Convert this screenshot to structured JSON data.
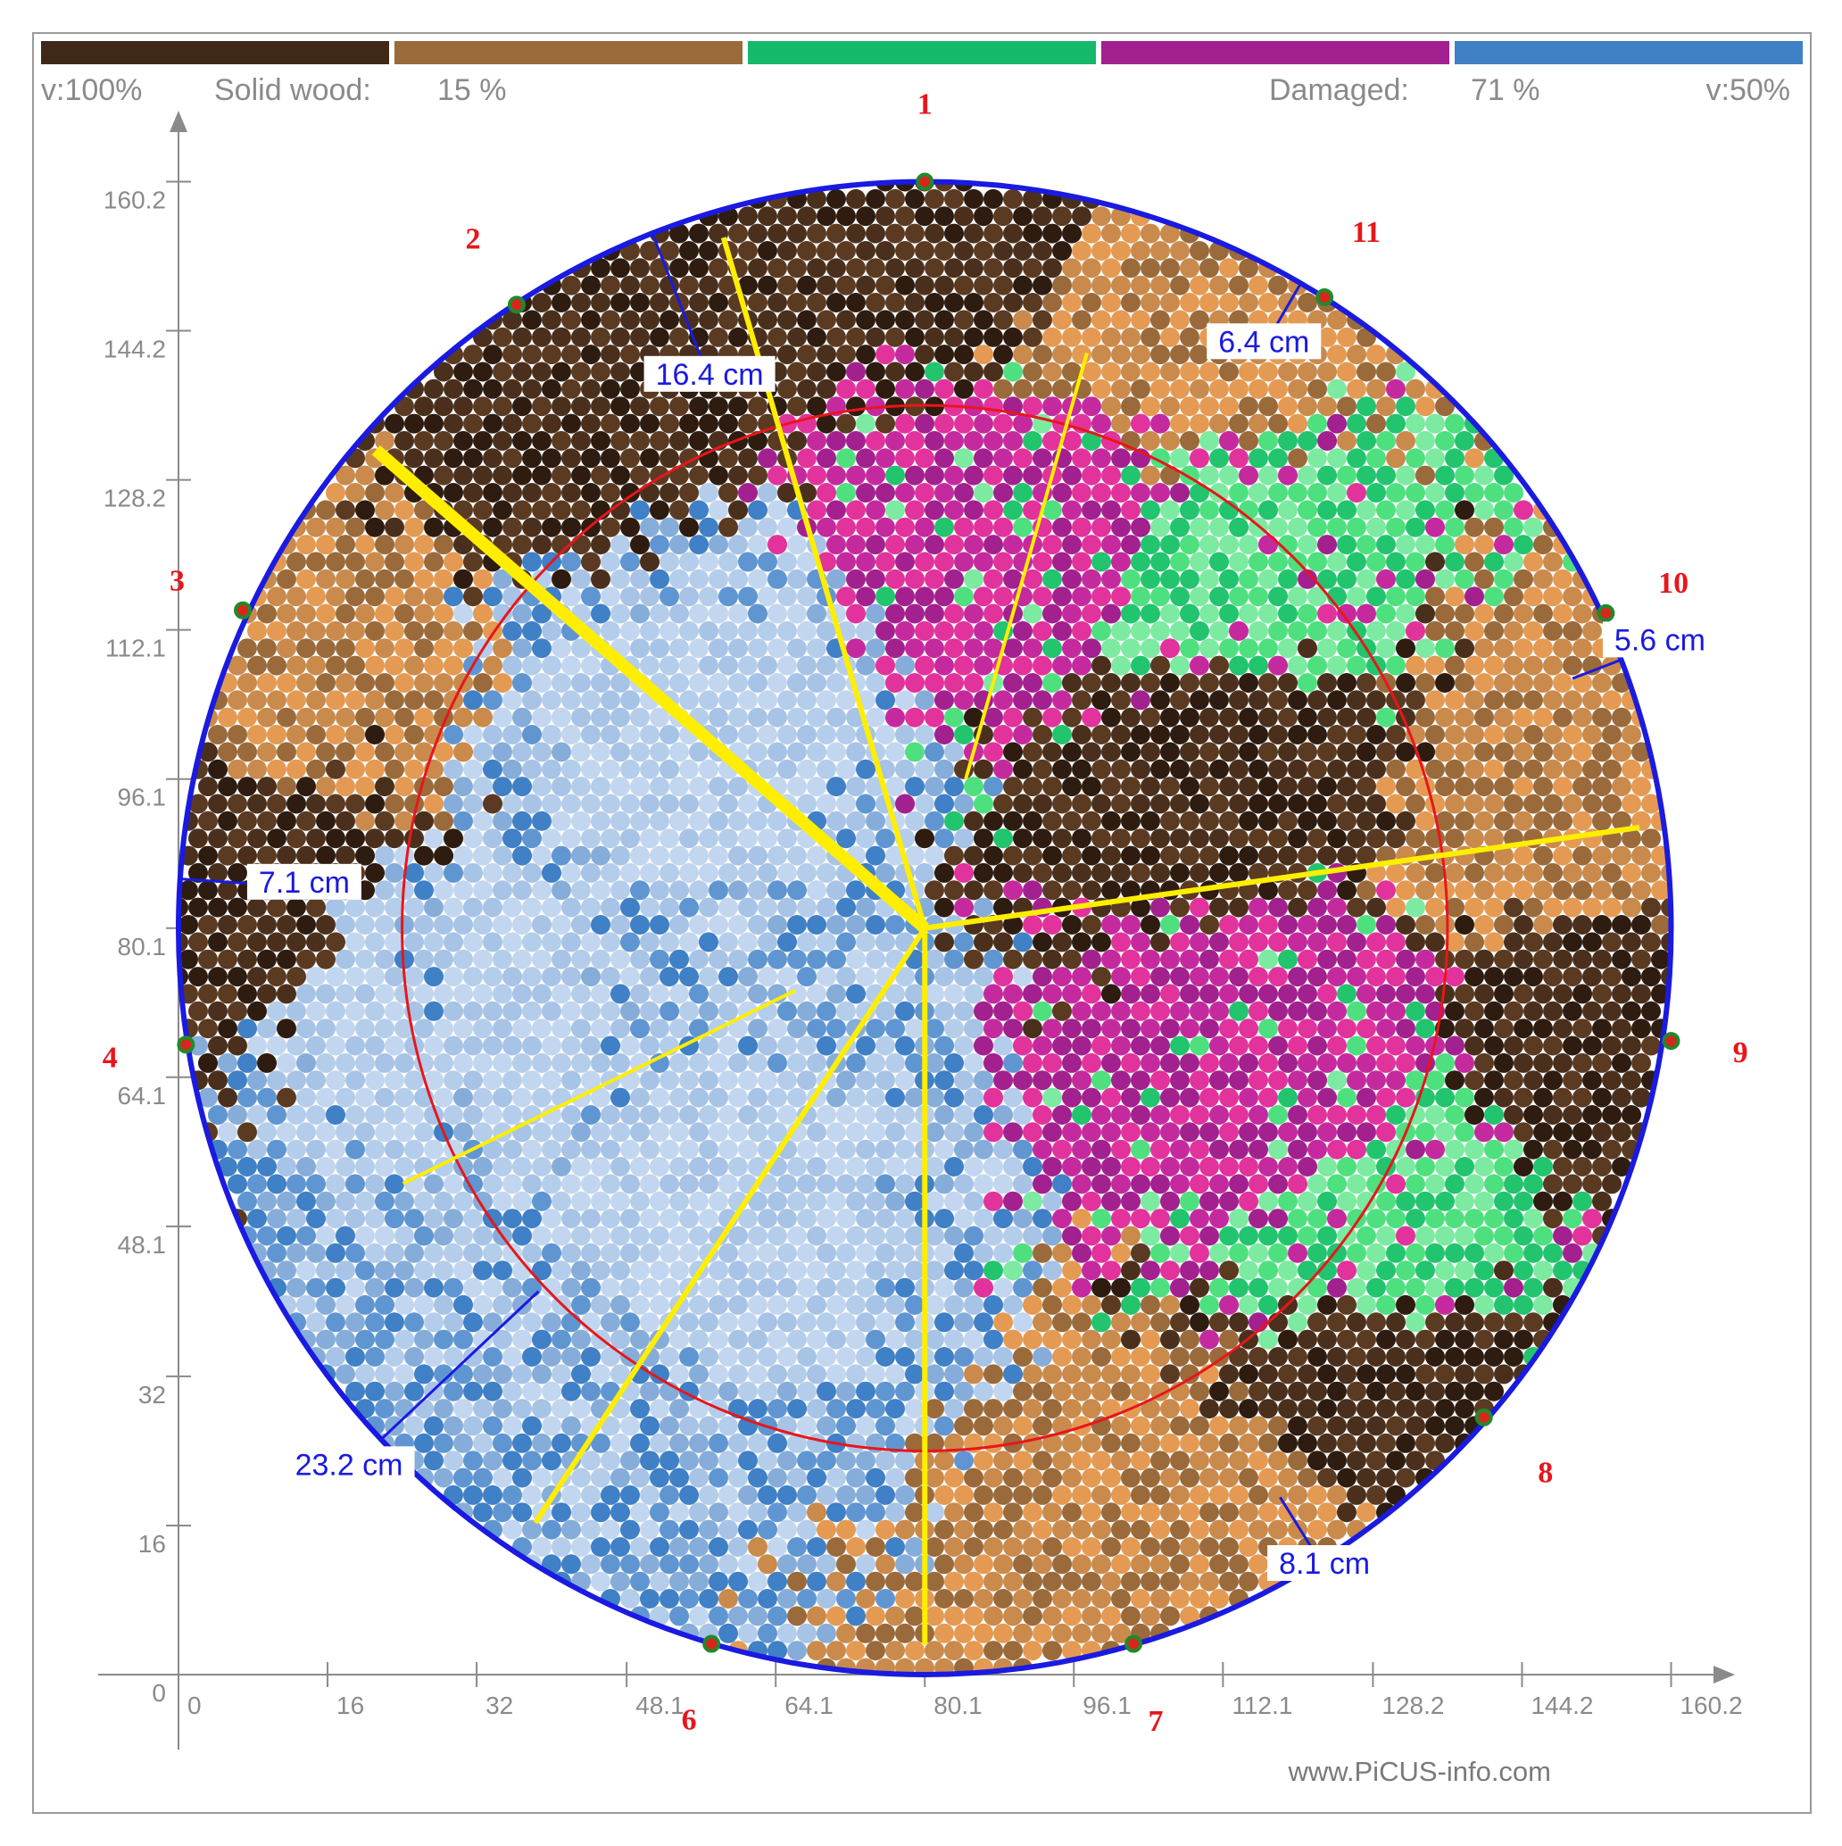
{
  "chart_data": {
    "type": "heatmap",
    "title": "",
    "xlabel": "",
    "ylabel": "",
    "xlim": [
      0,
      168
    ],
    "ylim": [
      0,
      168
    ],
    "x_ticks": [
      "0",
      "16",
      "32",
      "48.1",
      "64.1",
      "80.1",
      "96.1",
      "112.1",
      "128.2",
      "144.2",
      "160.2"
    ],
    "x_tick_values": [
      0,
      16,
      32,
      48.1,
      64.1,
      80.1,
      96.1,
      112.1,
      128.2,
      144.2,
      160.2
    ],
    "y_ticks": [
      "0",
      "16",
      "32",
      "48.1",
      "64.1",
      "80.1",
      "96.1",
      "112.1",
      "128.2",
      "144.2",
      "160.2"
    ],
    "y_tick_values": [
      0,
      16,
      32,
      48.1,
      64.1,
      80.1,
      96.1,
      112.1,
      128.2,
      144.2,
      160.2
    ],
    "color_scale": {
      "colors": [
        "#3f2818",
        "#9b6a3a",
        "#16b86a",
        "#a3208f",
        "#3f80c6"
      ],
      "left_label": "v:100%",
      "right_label": "v:50%"
    },
    "stats": {
      "solid_label": "Solid wood:",
      "solid_value": "15 %",
      "damaged_label": "Damaged:",
      "damaged_value": "71 %"
    },
    "circumference": {
      "center": [
        80.1,
        80.1
      ],
      "radius": 80.1
    },
    "inner_circle": {
      "center": [
        80.1,
        80.1
      ],
      "radius": 56.1
    },
    "sensors": [
      {
        "label": "1",
        "x": 80.1,
        "y": 160.2
      },
      {
        "label": "2",
        "x": 36.3,
        "y": 147.0
      },
      {
        "label": "3",
        "x": 6.9,
        "y": 114.2
      },
      {
        "label": "4",
        "x": 0.8,
        "y": 67.6
      },
      {
        "label": "6",
        "x": 57.2,
        "y": 3.3
      },
      {
        "label": "7",
        "x": 102.5,
        "y": 3.3
      },
      {
        "label": "8",
        "x": 140.1,
        "y": 27.6
      },
      {
        "label": "9",
        "x": 160.2,
        "y": 68.0
      },
      {
        "label": "10",
        "x": 153.2,
        "y": 113.9
      },
      {
        "label": "11",
        "x": 123.0,
        "y": 147.8
      }
    ],
    "residual_wall": [
      {
        "label": "16.4 cm",
        "x": 57.0,
        "y": 139.0
      },
      {
        "label": "6.4 cm",
        "x": 116.5,
        "y": 142.5
      },
      {
        "label": "5.6 cm",
        "x": 159.0,
        "y": 110.5
      },
      {
        "label": "7.1 cm",
        "x": 13.5,
        "y": 84.5
      },
      {
        "label": "23.2 cm",
        "x": 18.3,
        "y": 22.0
      },
      {
        "label": "8.1 cm",
        "x": 123.0,
        "y": 11.4
      }
    ],
    "cracks": [
      {
        "from": [
          80.1,
          80.1
        ],
        "to": [
          21.2,
          131.4
        ],
        "weight": "thick"
      },
      {
        "from": [
          80.1,
          80.1
        ],
        "to": [
          58.5,
          154.2
        ],
        "weight": "normal"
      },
      {
        "from": [
          80.1,
          80.1
        ],
        "to": [
          156.8,
          90.9
        ],
        "weight": "normal"
      },
      {
        "from": [
          80.1,
          80.1
        ],
        "to": [
          38.3,
          16.3
        ],
        "weight": "normal"
      },
      {
        "from": [
          80.1,
          80.1
        ],
        "to": [
          80.1,
          3.2
        ],
        "weight": "normal"
      },
      {
        "from": [
          84.5,
          96.1
        ],
        "to": [
          97.5,
          141.8
        ],
        "weight": "thin"
      },
      {
        "from": [
          66.2,
          73.4
        ],
        "to": [
          24.1,
          52.7
        ],
        "weight": "thin"
      }
    ],
    "damage_regions": [
      {
        "label": "solid_dark",
        "x": 42.0,
        "y": 143.0
      },
      {
        "label": "solid_dark",
        "x": 4.5,
        "y": 90.0
      },
      {
        "label": "solid_dark",
        "x": 112.8,
        "y": 100.0
      },
      {
        "label": "solid_dark",
        "x": 130.0,
        "y": 30.0
      },
      {
        "label": "solid_dark",
        "x": 87.0,
        "y": 158.0
      },
      {
        "label": "solid_dark",
        "x": 153.0,
        "y": 70.0
      },
      {
        "label": "intact_brown",
        "x": 105.0,
        "y": 148.0
      },
      {
        "label": "intact_brown",
        "x": 149.0,
        "y": 92.0
      },
      {
        "label": "intact_brown",
        "x": 8.0,
        "y": 105.0
      },
      {
        "label": "intact_brown",
        "x": 112.0,
        "y": 14.0
      },
      {
        "label": "green",
        "x": 112.0,
        "y": 115.0
      },
      {
        "label": "green",
        "x": 130.0,
        "y": 48.0
      },
      {
        "label": "magenta",
        "x": 120.0,
        "y": 65.0
      },
      {
        "label": "magenta",
        "x": 92.0,
        "y": 122.0
      },
      {
        "label": "blue_damaged",
        "x": 56.0,
        "y": 100.0
      },
      {
        "label": "blue_damaged",
        "x": 60.0,
        "y": 50.0
      },
      {
        "label": "blue_damaged",
        "x": 30.0,
        "y": 70.0
      }
    ],
    "watermark": "www.PiCUS-info.com"
  }
}
